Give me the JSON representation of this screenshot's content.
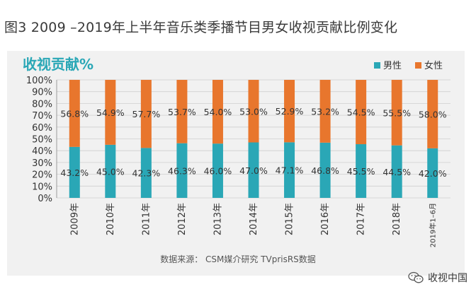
{
  "figure_title": "图3  2009  –2019年上半年音乐类季播节目男女收视贡献比例变化",
  "source": "数据来源：  CSM媒介研究  TVprisRS数据",
  "watermark": "收视中国",
  "watermark_icon": "wechat-icon",
  "colors": {
    "male": "#2aa7b6",
    "female": "#e8762d",
    "subtitle": "#2aa7b6",
    "plot_bg": "#f1f1f1",
    "grid": "#cfcfcf",
    "axis_text": "#333333"
  },
  "chart_data": {
    "type": "bar",
    "stacked": true,
    "title": "收视贡献%",
    "categories": [
      "2009年",
      "2010年",
      "2011年",
      "2012年",
      "2013年",
      "2014年",
      "2015年",
      "2016年",
      "2017年",
      "2018年",
      "2019年1–6月"
    ],
    "series": [
      {
        "name": "男性",
        "values": [
          43.2,
          45.0,
          42.3,
          46.3,
          46.0,
          47.0,
          47.1,
          46.8,
          45.5,
          44.5,
          42.0
        ]
      },
      {
        "name": "女性",
        "values": [
          56.8,
          54.9,
          57.7,
          53.7,
          54.0,
          53.0,
          52.9,
          53.2,
          54.5,
          55.5,
          58.0
        ]
      }
    ],
    "value_labels": {
      "男性": [
        "43.2%",
        "45.0%",
        "42.3%",
        "46.3%",
        "46.0%",
        "47.0%",
        "47.1%",
        "46.8%",
        "45.5%",
        "44.5%",
        "42.0%"
      ],
      "女性": [
        "56.8%",
        "54.9%",
        "57.7%",
        "53.7%",
        "54.0%",
        "53.0%",
        "52.9%",
        "53.2%",
        "54.5%",
        "55.5%",
        "58.0%"
      ]
    },
    "yticks": [
      "0%",
      "10%",
      "20%",
      "30%",
      "40%",
      "50%",
      "60%",
      "70%",
      "80%",
      "90%",
      "100%"
    ],
    "ylim": [
      0,
      100
    ],
    "xlabel": "",
    "ylabel": "",
    "legend_position": "top-right",
    "grid": true
  }
}
